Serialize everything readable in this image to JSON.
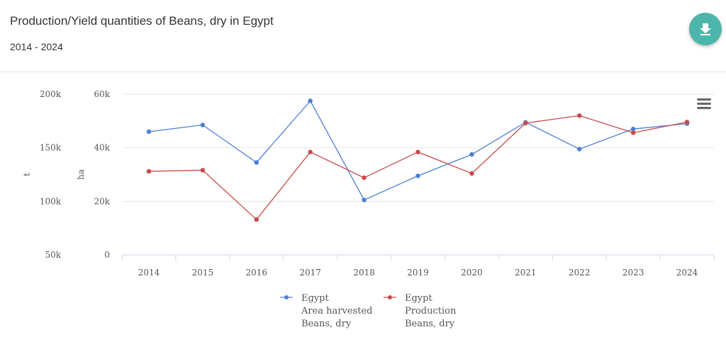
{
  "header": {
    "title": "Production/Yield quantities of Beans, dry in Egypt",
    "subtitle": "2014 - 2024",
    "download_icon": "download-icon"
  },
  "menu_icon": "hamburger-menu-icon",
  "colors": {
    "area_series": "#4a7fd4",
    "production_series": "#c94a4a",
    "accent": "#4db6ac",
    "grid": "#e6e6e6"
  },
  "chart_data": {
    "type": "line",
    "title": "Production/Yield quantities of Beans, dry in Egypt",
    "subtitle": "2014 - 2024",
    "x": [
      "2014",
      "2015",
      "2016",
      "2017",
      "2018",
      "2019",
      "2020",
      "2021",
      "2022",
      "2023",
      "2024"
    ],
    "y_axes": [
      {
        "id": "t",
        "label": "t",
        "ticks": [
          "50k",
          "100k",
          "150k",
          "200k"
        ],
        "range": [
          50000,
          200000
        ]
      },
      {
        "id": "ha",
        "label": "ha",
        "ticks": [
          "0",
          "20k",
          "40k",
          "60k"
        ],
        "range": [
          0,
          60000
        ]
      }
    ],
    "series": [
      {
        "name": "Egypt\nArea harvested\nBeans, dry",
        "legend_lines": [
          "Egypt",
          "Area harvested",
          "Beans, dry"
        ],
        "axis": "ha",
        "color": "#4a7fd4",
        "values": [
          46000,
          48500,
          34500,
          57500,
          20500,
          29500,
          37500,
          49500,
          39500,
          47000,
          49000
        ]
      },
      {
        "name": "Egypt\nProduction\nBeans, dry",
        "legend_lines": [
          "Egypt",
          "Production",
          "Beans, dry"
        ],
        "axis": "t",
        "color": "#c94a4a",
        "values": [
          128000,
          129000,
          83000,
          146000,
          122000,
          146000,
          126000,
          173000,
          180000,
          164000,
          174000
        ]
      }
    ],
    "grid": true,
    "legend_position": "bottom-center"
  }
}
